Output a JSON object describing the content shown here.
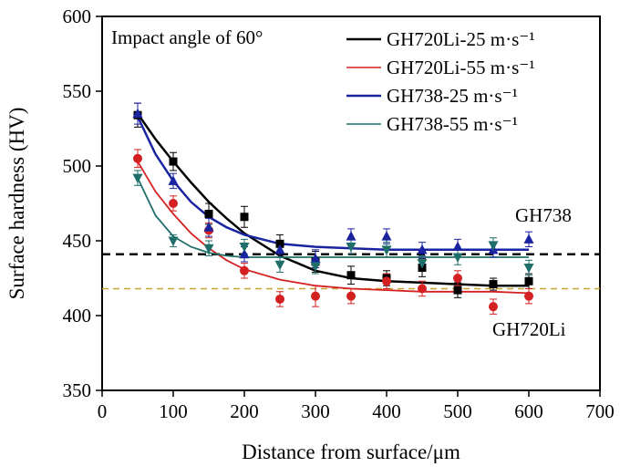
{
  "chart_data": {
    "type": "scatter",
    "title": "",
    "annotation_top_left": "Impact angle of 60°",
    "xlabel": "Distance from surface/μm",
    "ylabel": "Surface hardness (HV)",
    "xlim": [
      0,
      700
    ],
    "ylim": [
      350,
      600
    ],
    "xticks": [
      0,
      100,
      200,
      300,
      400,
      500,
      600,
      700
    ],
    "yticks": [
      350,
      400,
      450,
      500,
      550,
      600
    ],
    "grid": false,
    "legend_position": "top-right",
    "series": [
      {
        "name": "GH720Li-25 m·s⁻¹",
        "color": "#000000",
        "marker": "square",
        "x": [
          50,
          100,
          150,
          200,
          250,
          300,
          350,
          400,
          450,
          500,
          550,
          600
        ],
        "y": [
          534,
          503,
          468,
          466,
          448,
          436,
          427,
          425,
          432,
          417,
          421,
          423
        ],
        "err": [
          8,
          6,
          7,
          7,
          6,
          7,
          6,
          5,
          6,
          5,
          4,
          5
        ],
        "fit": [
          [
            50,
            535
          ],
          [
            75,
            518
          ],
          [
            100,
            503
          ],
          [
            125,
            489
          ],
          [
            150,
            476
          ],
          [
            175,
            465
          ],
          [
            200,
            455
          ],
          [
            250,
            440
          ],
          [
            300,
            430
          ],
          [
            350,
            425
          ],
          [
            400,
            423
          ],
          [
            450,
            422
          ],
          [
            500,
            421
          ],
          [
            550,
            420
          ],
          [
            600,
            420
          ]
        ]
      },
      {
        "name": "GH720Li-55 m·s⁻¹",
        "color": "#d42020",
        "marker": "circle",
        "x": [
          50,
          100,
          150,
          200,
          250,
          300,
          350,
          400,
          450,
          500,
          550,
          600
        ],
        "y": [
          505,
          475,
          457,
          430,
          411,
          413,
          413,
          423,
          418,
          425,
          406,
          413
        ],
        "err": [
          6,
          5,
          5,
          5,
          5,
          7,
          5,
          5,
          5,
          5,
          5,
          5
        ],
        "fit": [
          [
            50,
            503
          ],
          [
            75,
            483
          ],
          [
            100,
            468
          ],
          [
            125,
            455
          ],
          [
            150,
            445
          ],
          [
            175,
            437
          ],
          [
            200,
            431
          ],
          [
            250,
            424
          ],
          [
            300,
            420
          ],
          [
            350,
            418
          ],
          [
            400,
            417
          ],
          [
            450,
            416
          ],
          [
            500,
            416
          ],
          [
            550,
            416
          ],
          [
            600,
            415
          ]
        ]
      },
      {
        "name": "GH738-25 m·s⁻¹",
        "color": "#1a24a0",
        "marker": "triangle-up",
        "x": [
          50,
          100,
          150,
          200,
          250,
          300,
          350,
          400,
          450,
          500,
          550,
          600
        ],
        "y": [
          535,
          490,
          459,
          441,
          444,
          438,
          453,
          453,
          444,
          446,
          444,
          451
        ],
        "err": [
          7,
          5,
          6,
          5,
          5,
          6,
          5,
          5,
          5,
          5,
          5,
          5
        ],
        "fit": [
          [
            50,
            533
          ],
          [
            75,
            508
          ],
          [
            100,
            490
          ],
          [
            125,
            476
          ],
          [
            150,
            466
          ],
          [
            175,
            459
          ],
          [
            200,
            454
          ],
          [
            250,
            448
          ],
          [
            300,
            446
          ],
          [
            350,
            445
          ],
          [
            400,
            444
          ],
          [
            450,
            444
          ],
          [
            500,
            444
          ],
          [
            550,
            444
          ],
          [
            600,
            444
          ]
        ]
      },
      {
        "name": "GH738-55 m·s⁻¹",
        "color": "#1f6e6a",
        "marker": "triangle-down",
        "x": [
          50,
          100,
          150,
          200,
          250,
          300,
          350,
          400,
          450,
          500,
          550,
          600
        ],
        "y": [
          492,
          450,
          445,
          446,
          434,
          433,
          446,
          444,
          435,
          439,
          447,
          432
        ],
        "err": [
          5,
          4,
          5,
          5,
          5,
          5,
          5,
          5,
          5,
          5,
          5,
          5
        ],
        "fit": [
          [
            50,
            492
          ],
          [
            75,
            467
          ],
          [
            100,
            453
          ],
          [
            125,
            446
          ],
          [
            150,
            442
          ],
          [
            175,
            440
          ],
          [
            200,
            439
          ],
          [
            250,
            439
          ],
          [
            300,
            439
          ],
          [
            350,
            439
          ],
          [
            400,
            439
          ],
          [
            450,
            439
          ],
          [
            500,
            439
          ],
          [
            550,
            439
          ],
          [
            600,
            439
          ]
        ]
      }
    ],
    "reference_lines": [
      {
        "label": "GH738",
        "y": 441,
        "color": "#000000",
        "style": "dashed"
      },
      {
        "label": "GH720Li",
        "y": 418,
        "color": "#c8a232",
        "style": "dashed"
      }
    ]
  }
}
